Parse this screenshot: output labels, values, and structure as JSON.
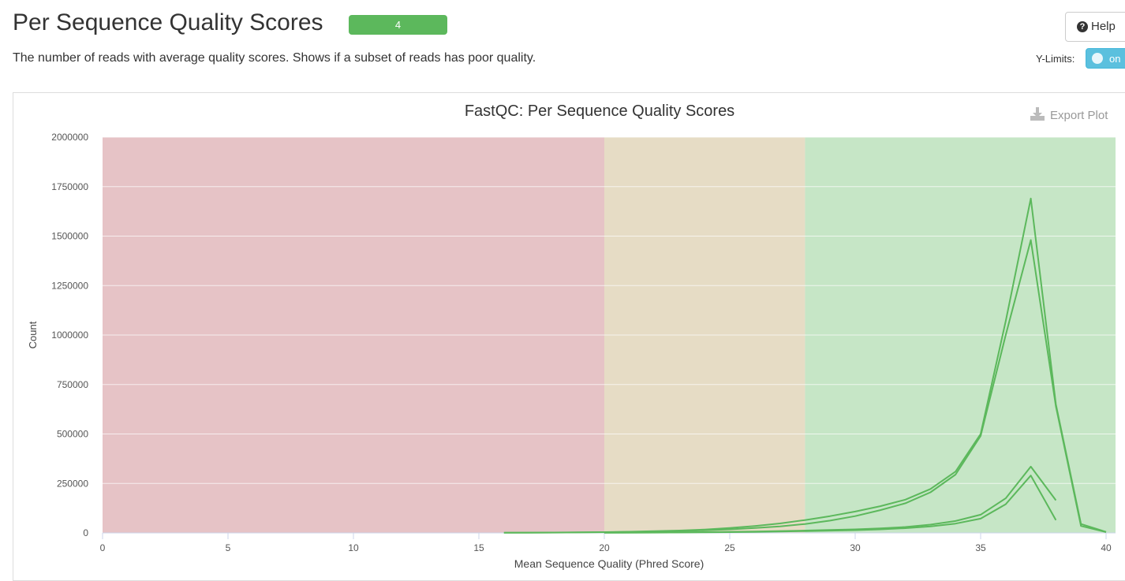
{
  "header": {
    "title": "Per Sequence Quality Scores",
    "badge": "4",
    "description": "The number of reads with average quality scores. Shows if a subset of reads has poor quality."
  },
  "controls": {
    "help_label": "Help",
    "ylimits_label": "Y-Limits:",
    "toggle_label": "on",
    "export_label": "Export Plot"
  },
  "colors": {
    "badge": "#5cb85c",
    "toggle": "#5bc0de",
    "fail_zone": "#e6c3c6",
    "warn_zone": "#e6dcc5",
    "pass_zone": "#c6e6c6",
    "line": "#5cb85c"
  },
  "chart_data": {
    "type": "line",
    "title": "FastQC: Per Sequence Quality Scores",
    "xlabel": "Mean Sequence Quality (Phred Score)",
    "ylabel": "Count",
    "xlim": [
      0,
      40
    ],
    "ylim": [
      0,
      2000000
    ],
    "x_ticks": [
      0,
      5,
      10,
      15,
      20,
      25,
      30,
      35,
      40
    ],
    "y_ticks": [
      0,
      250000,
      500000,
      750000,
      1000000,
      1250000,
      1500000,
      1750000,
      2000000
    ],
    "bands": [
      {
        "from": 0,
        "to": 20,
        "zone": "fail"
      },
      {
        "from": 20,
        "to": 28,
        "zone": "warn"
      },
      {
        "from": 28,
        "to": 40,
        "zone": "pass"
      }
    ],
    "series": [
      {
        "x": [
          16,
          17,
          18,
          19,
          20,
          21,
          22,
          23,
          24,
          25,
          26,
          27,
          28,
          29,
          30,
          31,
          32,
          33,
          34,
          35,
          36,
          37,
          38,
          39,
          40
        ],
        "y": [
          1000,
          1500,
          2000,
          3000,
          4000,
          6000,
          9000,
          12000,
          17000,
          25000,
          35000,
          48000,
          65000,
          85000,
          108000,
          135000,
          168000,
          222000,
          310000,
          500000,
          1070000,
          1690000,
          650000,
          45000,
          5000
        ]
      },
      {
        "x": [
          16,
          17,
          18,
          19,
          20,
          21,
          22,
          23,
          24,
          25,
          26,
          27,
          28,
          29,
          30,
          31,
          32,
          33,
          34,
          35,
          36,
          37,
          38,
          39,
          40
        ],
        "y": [
          800,
          1200,
          1600,
          2500,
          3500,
          5000,
          7000,
          9500,
          13000,
          18000,
          25000,
          33000,
          45000,
          62000,
          85000,
          115000,
          150000,
          205000,
          295000,
          490000,
          1000000,
          1480000,
          640000,
          35000,
          4000
        ]
      },
      {
        "x": [
          20,
          22,
          24,
          26,
          28,
          30,
          31,
          32,
          33,
          34,
          35,
          36,
          37,
          38
        ],
        "y": [
          1000,
          2000,
          4000,
          7000,
          12000,
          18000,
          23000,
          30000,
          42000,
          60000,
          92000,
          175000,
          335000,
          165000
        ]
      },
      {
        "x": [
          20,
          22,
          24,
          26,
          28,
          30,
          31,
          32,
          33,
          34,
          35,
          36,
          37,
          38
        ],
        "y": [
          800,
          1500,
          3000,
          5000,
          9000,
          14000,
          18000,
          24000,
          33000,
          47000,
          72000,
          145000,
          290000,
          65000
        ]
      }
    ]
  }
}
